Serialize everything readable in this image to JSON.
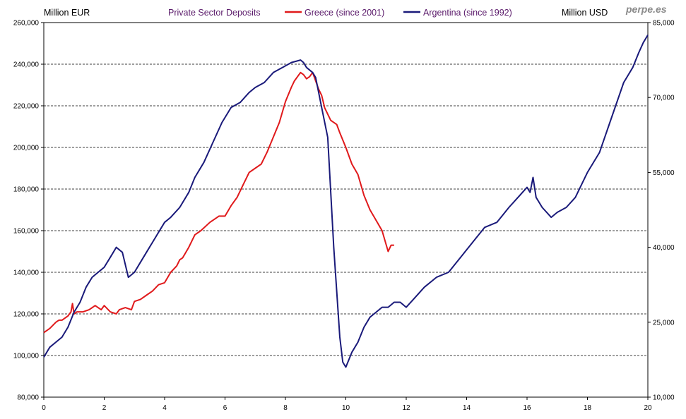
{
  "chart_data": {
    "type": "line",
    "title": "Private Sector Deposits",
    "left_axis_label": "Million EUR",
    "right_axis_label": "Million USD",
    "watermark": "perpe.es",
    "x_ticks": [
      "0",
      "2",
      "4",
      "6",
      "8",
      "10",
      "12",
      "14",
      "16",
      "18",
      "20"
    ],
    "left_ticks": [
      "80,000",
      "100,000",
      "120,000",
      "140,000",
      "160,000",
      "180,000",
      "200,000",
      "220,000",
      "240,000",
      "260,000"
    ],
    "right_ticks": [
      "10,000",
      "25,000",
      "40,000",
      "55,000",
      "70,000",
      "85,000"
    ],
    "xlim": [
      0,
      20
    ],
    "ylim_left": [
      80000,
      260000
    ],
    "ylim_right": [
      10000,
      85000
    ],
    "grid": "horizontal dashed at each left tick",
    "colors": {
      "greece": "#e0191b",
      "argentina": "#1a1a7a",
      "grid": "#000000"
    },
    "series": [
      {
        "name": "Greece (since 2001)",
        "axis": "left",
        "color": "#e0191b",
        "x": [
          0,
          0.2,
          0.4,
          0.5,
          0.6,
          0.8,
          0.9,
          0.95,
          1.0,
          1.1,
          1.3,
          1.5,
          1.7,
          1.9,
          2.0,
          2.2,
          2.4,
          2.5,
          2.7,
          2.9,
          3.0,
          3.2,
          3.4,
          3.6,
          3.8,
          4.0,
          4.2,
          4.4,
          4.5,
          4.6,
          4.8,
          5.0,
          5.2,
          5.5,
          5.8,
          6.0,
          6.2,
          6.4,
          6.6,
          6.8,
          7.0,
          7.2,
          7.4,
          7.6,
          7.8,
          8.0,
          8.2,
          8.3,
          8.4,
          8.5,
          8.6,
          8.7,
          8.8,
          8.9,
          9.0,
          9.1,
          9.2,
          9.3,
          9.5,
          9.6,
          9.7,
          9.8,
          10.0,
          10.2,
          10.4,
          10.6,
          10.8,
          11.0,
          11.2,
          11.4,
          11.5,
          11.6
        ],
        "y": [
          111000,
          113000,
          116000,
          117000,
          117000,
          119000,
          121000,
          125000,
          120000,
          121000,
          121000,
          122000,
          124000,
          122000,
          124000,
          121000,
          120000,
          122000,
          123000,
          122000,
          126000,
          127000,
          129000,
          131000,
          134000,
          135000,
          140000,
          143000,
          146000,
          147000,
          152000,
          158000,
          160000,
          164000,
          167000,
          167000,
          172000,
          176000,
          182000,
          188000,
          190000,
          192000,
          198000,
          205000,
          212000,
          222000,
          229000,
          232000,
          234000,
          236000,
          235000,
          233000,
          234000,
          236000,
          232000,
          228000,
          225000,
          219000,
          213000,
          212000,
          211000,
          207000,
          200000,
          192000,
          187000,
          177000,
          170000,
          165000,
          160000,
          150000,
          153000,
          153000
        ]
      },
      {
        "name": "Argentina (since 1992)",
        "axis": "right",
        "color": "#1a1a7a",
        "x": [
          0,
          0.2,
          0.4,
          0.6,
          0.8,
          1.0,
          1.2,
          1.4,
          1.6,
          1.8,
          2.0,
          2.2,
          2.4,
          2.6,
          2.8,
          3.0,
          3.2,
          3.4,
          3.6,
          3.8,
          4.0,
          4.2,
          4.5,
          4.8,
          5.0,
          5.3,
          5.6,
          5.9,
          6.2,
          6.5,
          6.8,
          7.0,
          7.3,
          7.6,
          7.9,
          8.2,
          8.5,
          8.6,
          8.7,
          8.9,
          9.0,
          9.2,
          9.4,
          9.6,
          9.8,
          9.9,
          10.0,
          10.2,
          10.4,
          10.6,
          10.8,
          11.0,
          11.2,
          11.4,
          11.6,
          11.8,
          12.0,
          12.3,
          12.6,
          13.0,
          13.4,
          13.8,
          14.2,
          14.6,
          15.0,
          15.4,
          15.7,
          16.0,
          16.1,
          16.2,
          16.3,
          16.5,
          16.8,
          17.0,
          17.3,
          17.6,
          18.0,
          18.4,
          18.8,
          19.2,
          19.5,
          19.7,
          19.85,
          20.0
        ],
        "y": [
          18000,
          20000,
          21000,
          22000,
          24000,
          27000,
          29000,
          32000,
          34000,
          35000,
          36000,
          38000,
          40000,
          39000,
          34000,
          35000,
          37000,
          39000,
          41000,
          43000,
          45000,
          46000,
          48000,
          51000,
          54000,
          57000,
          61000,
          65000,
          68000,
          69000,
          71000,
          72000,
          73000,
          75000,
          76000,
          77000,
          77500,
          77000,
          76000,
          75000,
          74000,
          68000,
          62000,
          40000,
          22000,
          17000,
          16000,
          19000,
          21000,
          24000,
          26000,
          27000,
          28000,
          28000,
          29000,
          29000,
          28000,
          30000,
          32000,
          34000,
          35000,
          38000,
          41000,
          44000,
          45000,
          48000,
          50000,
          52000,
          51000,
          54000,
          50000,
          48000,
          46000,
          47000,
          48000,
          50000,
          55000,
          59000,
          66000,
          73000,
          76000,
          79000,
          81000,
          82500
        ]
      }
    ]
  }
}
